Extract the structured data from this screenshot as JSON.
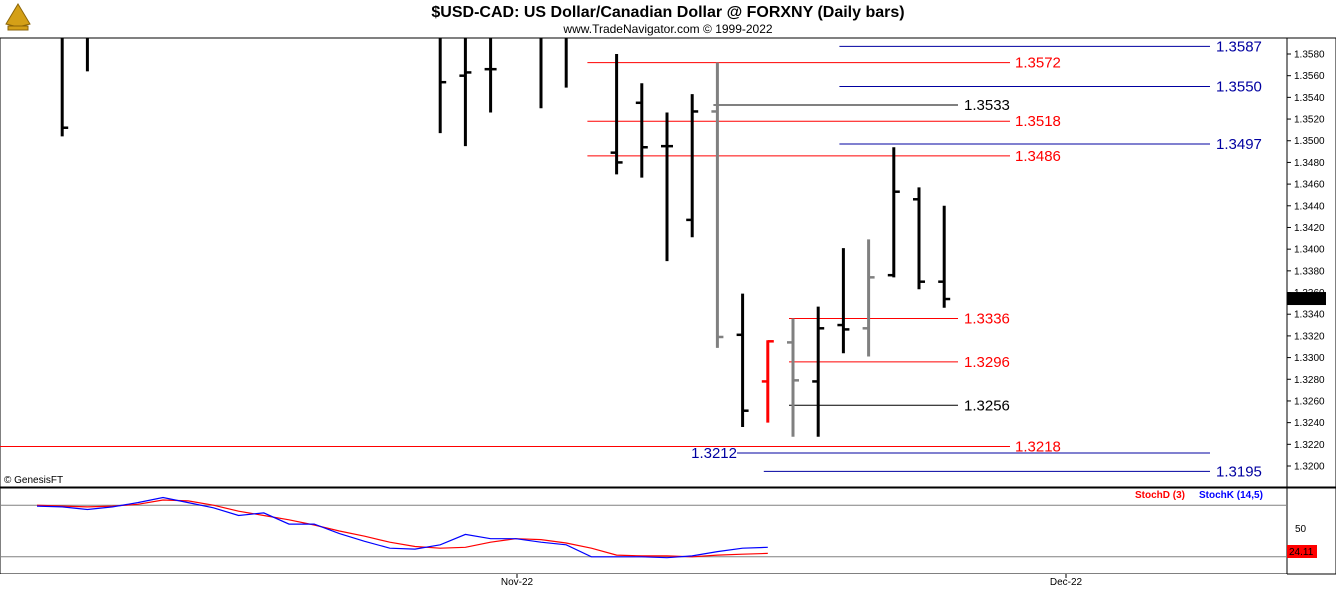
{
  "header": {
    "title": "$USD-CAD:  US Dollar/Canadian Dollar @ FORXNY  (Daily bars)",
    "subtitle": "www.TradeNavigator.com © 1999-2022"
  },
  "footer": {
    "copyright": "© GenesisFT"
  },
  "colors": {
    "bar_up": "#000000",
    "bar_gray": "#808080",
    "bar_red": "#ff0000",
    "level_red": "#ff0000",
    "level_blue": "#0000a0",
    "level_black": "#000000",
    "stoch_d": "#ff0000",
    "stoch_k": "#0000ff",
    "last_price_bg": "#000000",
    "stoch_value_bg": "#ff0000"
  },
  "chart_data": [
    {
      "type": "ohlc",
      "title": "$USD-CAD:  US Dollar/Canadian Dollar @ FORXNY  (Daily bars)",
      "ylim": [
        1.318,
        1.359
      ],
      "y_ticks": [
        "1.3580",
        "1.3560",
        "1.3540",
        "1.3520",
        "1.3500",
        "1.3480",
        "1.3460",
        "1.3440",
        "1.3420",
        "1.3400",
        "1.3380",
        "1.3360",
        "1.3340",
        "1.3320",
        "1.3300",
        "1.3280",
        "1.3260",
        "1.3240",
        "1.3220",
        "1.3200"
      ],
      "x_labels": [
        "Nov-22",
        "Dec-22"
      ],
      "last_price": "1.3354",
      "bars": [
        {
          "i": 1,
          "high": 1.36,
          "low": 1.3504,
          "close": 1.3512,
          "open": null,
          "color": "black"
        },
        {
          "i": 2,
          "high": 1.36,
          "low": 1.3564,
          "close": null,
          "open": null,
          "color": "black"
        },
        {
          "i": 16,
          "high": 1.36,
          "low": 1.3507,
          "close": 1.3554,
          "open": null,
          "color": "black"
        },
        {
          "i": 17,
          "high": 1.36,
          "low": 1.3495,
          "close": 1.3563,
          "open": 1.356,
          "color": "black"
        },
        {
          "i": 18,
          "high": 1.36,
          "low": 1.3526,
          "close": 1.3566,
          "open": 1.3566,
          "color": "black"
        },
        {
          "i": 20,
          "high": 1.36,
          "low": 1.353,
          "close": null,
          "open": null,
          "color": "black"
        },
        {
          "i": 21,
          "high": 1.36,
          "low": 1.3549,
          "close": null,
          "open": null,
          "color": "black"
        },
        {
          "i": 23,
          "high": 1.358,
          "low": 1.3469,
          "close": 1.348,
          "open": 1.3489,
          "color": "black"
        },
        {
          "i": 24,
          "high": 1.3553,
          "low": 1.3466,
          "close": 1.3494,
          "open": 1.3535,
          "color": "black"
        },
        {
          "i": 25,
          "high": 1.3526,
          "low": 1.3389,
          "close": 1.3495,
          "open": 1.3495,
          "color": "black"
        },
        {
          "i": 26,
          "high": 1.3543,
          "low": 1.3411,
          "close": 1.3527,
          "open": 1.3427,
          "color": "black"
        },
        {
          "i": 27,
          "high": 1.3572,
          "low": 1.3309,
          "close": 1.3319,
          "open": 1.3527,
          "color": "gray"
        },
        {
          "i": 28,
          "high": 1.3359,
          "low": 1.3236,
          "close": 1.3251,
          "open": 1.3321,
          "color": "black"
        },
        {
          "i": 29,
          "high": 1.3316,
          "low": 1.324,
          "close": 1.3315,
          "open": 1.3278,
          "color": "red"
        },
        {
          "i": 30,
          "high": 1.3336,
          "low": 1.3227,
          "close": 1.3279,
          "open": 1.3314,
          "color": "gray"
        },
        {
          "i": 31,
          "high": 1.3347,
          "low": 1.3227,
          "close": 1.3327,
          "open": 1.3278,
          "color": "black"
        },
        {
          "i": 32,
          "high": 1.3401,
          "low": 1.3304,
          "close": 1.3326,
          "open": 1.333,
          "color": "black"
        },
        {
          "i": 33,
          "high": 1.3409,
          "low": 1.3301,
          "close": 1.3374,
          "open": 1.3327,
          "color": "gray"
        },
        {
          "i": 34,
          "high": 1.3494,
          "low": 1.3374,
          "close": 1.3453,
          "open": 1.3376,
          "color": "black"
        },
        {
          "i": 35,
          "high": 1.3457,
          "low": 1.3363,
          "close": 1.337,
          "open": 1.3446,
          "color": "black"
        },
        {
          "i": 36,
          "high": 1.344,
          "low": 1.3346,
          "close": 1.3354,
          "open": 1.337,
          "color": "black"
        }
      ],
      "levels": [
        {
          "value": 1.3587,
          "label": "1.3587",
          "color": "blue",
          "from_i": 32
        },
        {
          "value": 1.3572,
          "label": "1.3572",
          "color": "red",
          "from_i": 22
        },
        {
          "value": 1.355,
          "label": "1.3550",
          "color": "blue",
          "from_i": 32
        },
        {
          "value": 1.3533,
          "label": "1.3533",
          "color": "black",
          "from_i": 27,
          "short": true
        },
        {
          "value": 1.3518,
          "label": "1.3518",
          "color": "red",
          "from_i": 22
        },
        {
          "value": 1.3497,
          "label": "1.3497",
          "color": "blue",
          "from_i": 32
        },
        {
          "value": 1.3486,
          "label": "1.3486",
          "color": "red",
          "from_i": 22
        },
        {
          "value": 1.3336,
          "label": "1.3336",
          "color": "red",
          "from_i": 30,
          "short": true
        },
        {
          "value": 1.3296,
          "label": "1.3296",
          "color": "red",
          "from_i": 30,
          "short": true
        },
        {
          "value": 1.3256,
          "label": "1.3256",
          "color": "black",
          "from_i": 30,
          "short": true
        },
        {
          "value": 1.3218,
          "label": "1.3218",
          "color": "red",
          "from_i": -1
        },
        {
          "value": 1.3212,
          "label": "1.3212",
          "color": "blue",
          "from_i": 28,
          "label_left": true
        },
        {
          "value": 1.3195,
          "label": "1.3195",
          "color": "blue",
          "from_i": 29
        }
      ]
    },
    {
      "type": "line",
      "title": "",
      "ylim": [
        0,
        100
      ],
      "y_ticks": [
        "50"
      ],
      "legend": [
        "StochD (3)",
        "StochK (14,5)"
      ],
      "last_value": "24.11",
      "series": [
        {
          "name": "StochD (3)",
          "values": [
            80,
            79,
            78,
            79,
            81,
            86,
            85,
            80,
            73,
            68,
            63,
            57,
            50,
            44,
            37,
            32,
            30,
            31,
            37,
            41,
            40,
            36,
            30,
            22,
            21,
            21,
            20,
            22,
            23,
            24
          ]
        },
        {
          "name": "StochK (14,5)",
          "values": [
            79,
            78,
            75,
            78,
            83,
            89,
            83,
            77,
            68,
            71,
            58,
            58,
            47,
            38,
            30,
            29,
            34,
            46,
            41,
            41,
            37,
            34,
            20,
            20,
            20,
            19,
            21,
            26,
            30,
            31
          ]
        }
      ]
    }
  ]
}
